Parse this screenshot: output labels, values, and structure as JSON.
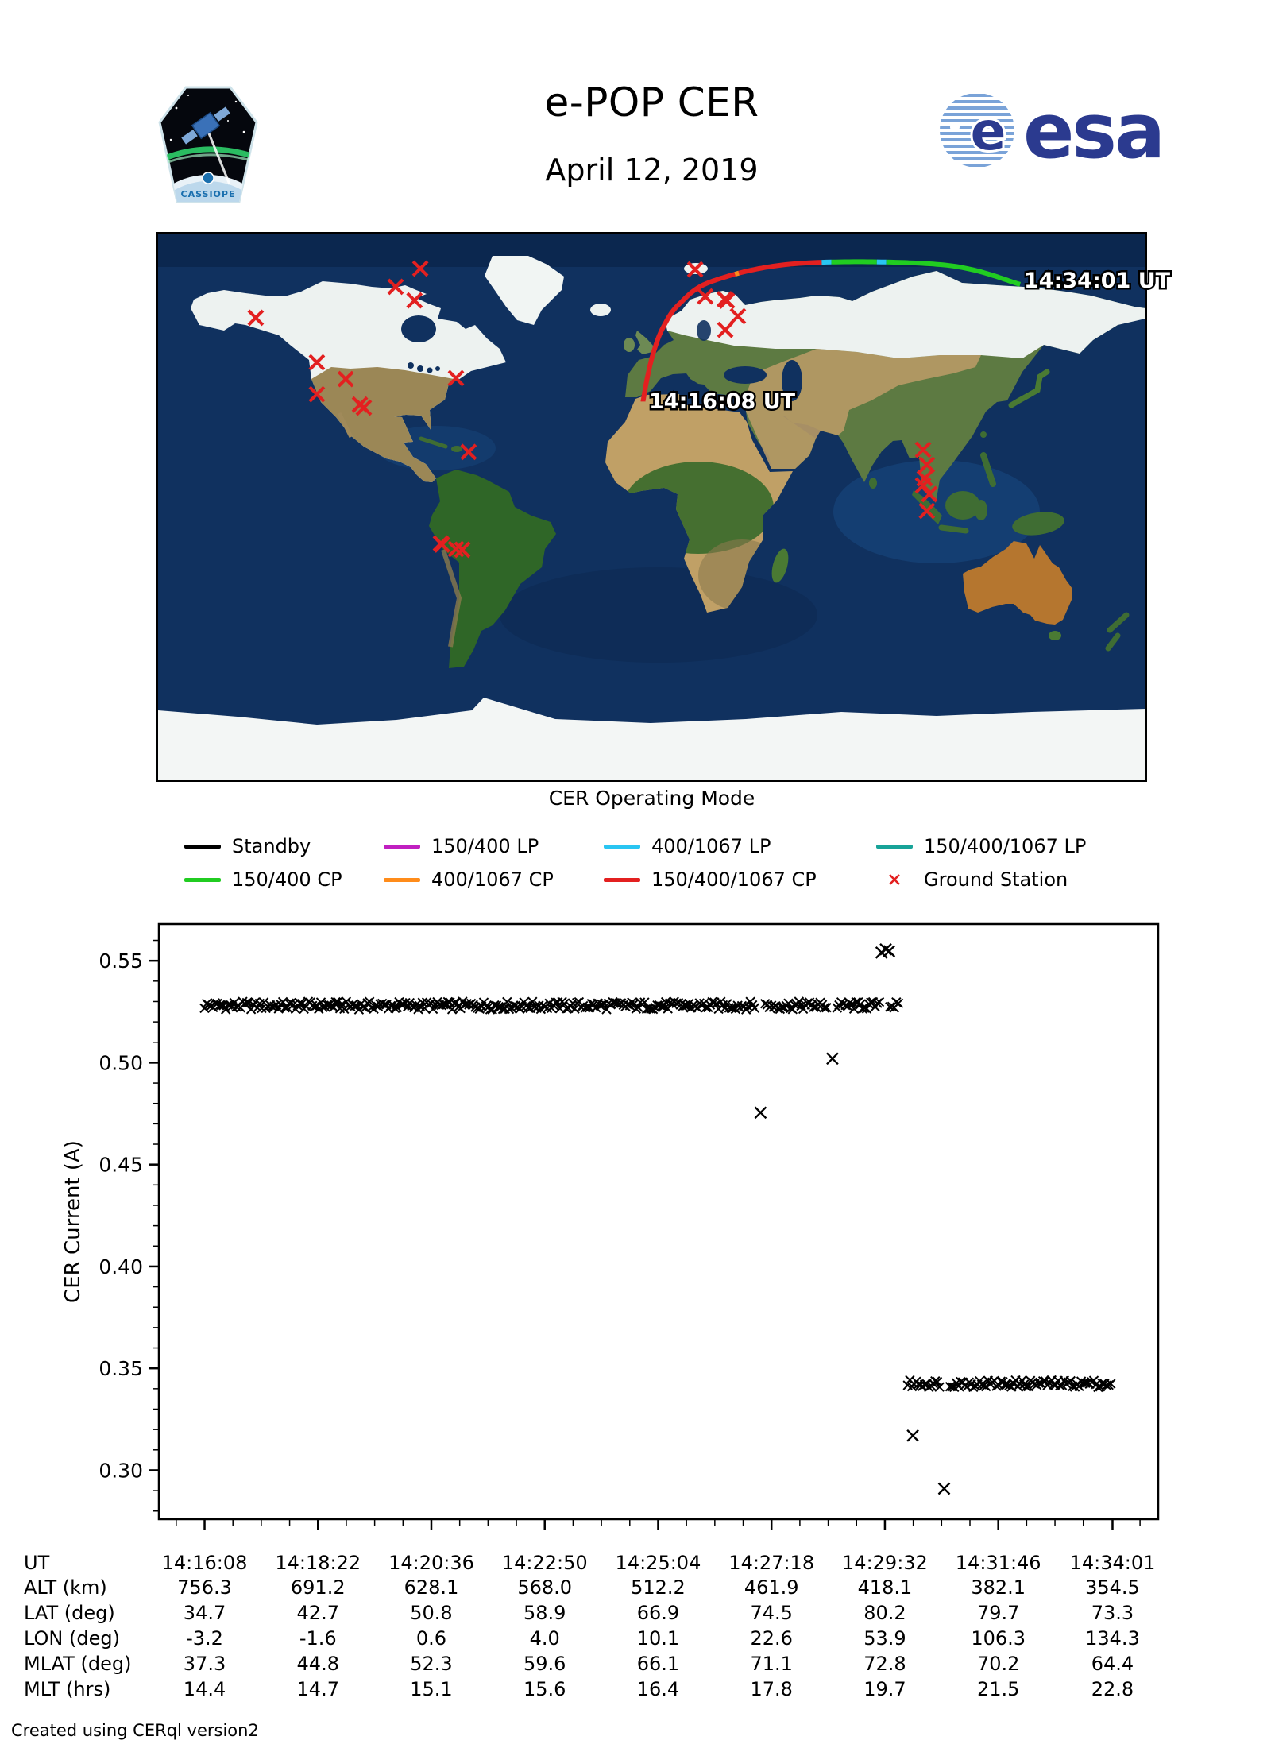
{
  "header": {
    "title": "e-POP CER",
    "date": "April 12, 2019",
    "esa_text": "esa",
    "esa_ball_letter": "e",
    "patch_text": "CASSIOPE"
  },
  "map": {
    "start_label": "14:16:08 UT",
    "end_label": "14:34:01 UT",
    "track": {
      "times": [
        0,
        134,
        268,
        402,
        536,
        670,
        804,
        938,
        1073
      ],
      "lon": [
        -3.2,
        -1.6,
        0.6,
        4.0,
        10.1,
        22.6,
        53.9,
        106.3,
        134.3
      ],
      "lat": [
        34.7,
        42.7,
        50.8,
        58.9,
        66.9,
        74.5,
        80.2,
        79.7,
        73.3
      ]
    },
    "mode_segments": [
      {
        "mode": "150/400/1067 CP",
        "color": "#e32020",
        "t0": 0,
        "t1": 712
      },
      {
        "mode": "400/1067 CP",
        "color": "#ff8c1a",
        "t0": 712,
        "t1": 719
      },
      {
        "mode": "150/400/1067 CP",
        "color": "#e32020",
        "t0": 719,
        "t1": 827
      },
      {
        "mode": "400/1067 LP",
        "color": "#29c5f2",
        "t0": 827,
        "t1": 836
      },
      {
        "mode": "150/400 CP",
        "color": "#21cc21",
        "t0": 836,
        "t1": 875
      },
      {
        "mode": "400/1067 LP",
        "color": "#29c5f2",
        "t0": 875,
        "t1": 883
      },
      {
        "mode": "150/400 CP",
        "color": "#21cc21",
        "t0": 883,
        "t1": 1073
      }
    ],
    "ground_station_color": "#e32020",
    "ground_stations": [
      [
        -84.4,
        78.5
      ],
      [
        -93.4,
        72.5
      ],
      [
        -86.5,
        68.0
      ],
      [
        -144.4,
        62.3
      ],
      [
        -122.1,
        47.6
      ],
      [
        -111.6,
        42.1
      ],
      [
        -122.1,
        37.1
      ],
      [
        -106.4,
        33.7
      ],
      [
        -105.0,
        32.7
      ],
      [
        -71.4,
        42.4
      ],
      [
        -66.8,
        18.1
      ],
      [
        -76.9,
        -12.0
      ],
      [
        -76.5,
        -12.4
      ],
      [
        -71.4,
        -13.9
      ],
      [
        -69.1,
        -14.1
      ],
      [
        15.8,
        78.2
      ],
      [
        19.5,
        69.3
      ],
      [
        26.6,
        68.4
      ],
      [
        27.4,
        67.9
      ],
      [
        31.4,
        62.8
      ],
      [
        26.8,
        58.3
      ],
      [
        98.9,
        18.8
      ],
      [
        100.3,
        13.9
      ],
      [
        99.5,
        9.4
      ],
      [
        98.9,
        7.1
      ],
      [
        101.2,
        4.2
      ],
      [
        100.3,
        -1.3
      ]
    ]
  },
  "legend": {
    "title": "CER Operating Mode",
    "items": [
      {
        "label": "Standby",
        "color": "#000000",
        "marker": "line"
      },
      {
        "label": "150/400 LP",
        "color": "#c020c0",
        "marker": "line"
      },
      {
        "label": "400/1067 LP",
        "color": "#29c5f2",
        "marker": "line"
      },
      {
        "label": "150/400/1067 LP",
        "color": "#17a398",
        "marker": "line"
      },
      {
        "label": "150/400 CP",
        "color": "#21cc21",
        "marker": "line"
      },
      {
        "label": "400/1067 CP",
        "color": "#ff8c1a",
        "marker": "line"
      },
      {
        "label": "150/400/1067 CP",
        "color": "#e32020",
        "marker": "line"
      },
      {
        "label": "Ground Station",
        "color": "#e32020",
        "marker": "x"
      }
    ]
  },
  "chart_data": {
    "type": "scatter",
    "title": "",
    "xlabel": "",
    "ylabel": "CER Current (A)",
    "marker": "x",
    "marker_color": "#000000",
    "grid": false,
    "x_tick_labels": [
      "14:16:08",
      "14:18:22",
      "14:20:36",
      "14:22:50",
      "14:25:04",
      "14:27:18",
      "14:29:32",
      "14:31:46",
      "14:34:01"
    ],
    "x_tick_seconds": [
      0,
      134,
      268,
      402,
      536,
      670,
      804,
      938,
      1073
    ],
    "xlim_seconds": [
      -54,
      1127
    ],
    "ylim": [
      0.276,
      0.568
    ],
    "y_ticks": [
      0.3,
      0.35,
      0.4,
      0.45,
      0.5,
      0.55
    ],
    "y_minor_step": 0.01,
    "series": [
      {
        "name": "current-high-band",
        "value": 0.528,
        "t_start": 0,
        "t_end": 820,
        "sample_step": 2.5,
        "jitter": 0.002,
        "gap_times": [
          657,
          742,
          804
        ]
      },
      {
        "name": "current-low-band",
        "value": 0.3425,
        "t_start": 831,
        "t_end": 1073,
        "sample_step": 2.5,
        "jitter": 0.0018,
        "gap_times": [
          874
        ]
      }
    ],
    "outlier_points": [
      [
        657,
        0.4755
      ],
      [
        742,
        0.502
      ],
      [
        800,
        0.554
      ],
      [
        805,
        0.5556
      ],
      [
        809,
        0.5547
      ],
      [
        837,
        0.317
      ],
      [
        874,
        0.291
      ]
    ]
  },
  "table": {
    "row_labels": [
      "UT",
      "ALT (km)",
      "LAT (deg)",
      "LON (deg)",
      "MLAT (deg)",
      "MLT (hrs)"
    ],
    "values": [
      [
        "14:16:08",
        "14:18:22",
        "14:20:36",
        "14:22:50",
        "14:25:04",
        "14:27:18",
        "14:29:32",
        "14:31:46",
        "14:34:01"
      ],
      [
        "756.3",
        "691.2",
        "628.1",
        "568.0",
        "512.2",
        "461.9",
        "418.1",
        "382.1",
        "354.5"
      ],
      [
        "34.7",
        "42.7",
        "50.8",
        "58.9",
        "66.9",
        "74.5",
        "80.2",
        "79.7",
        "73.3"
      ],
      [
        "-3.2",
        "-1.6",
        "0.6",
        "4.0",
        "10.1",
        "22.6",
        "53.9",
        "106.3",
        "134.3"
      ],
      [
        "37.3",
        "44.8",
        "52.3",
        "59.6",
        "66.1",
        "71.1",
        "72.8",
        "70.2",
        "64.4"
      ],
      [
        "14.4",
        "14.7",
        "15.1",
        "15.6",
        "16.4",
        "17.8",
        "19.7",
        "21.5",
        "22.8"
      ]
    ]
  },
  "footer": {
    "credit": "Created using CERql version2"
  }
}
